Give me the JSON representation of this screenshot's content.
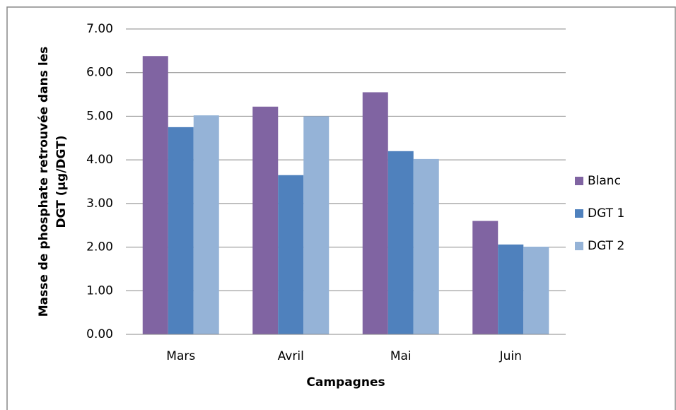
{
  "chart_data": {
    "type": "bar",
    "categories": [
      "Mars",
      "Avril",
      "Mai",
      "Juin"
    ],
    "series": [
      {
        "name": "Blanc",
        "color": "#8064a2",
        "values": [
          6.38,
          5.22,
          5.55,
          2.6
        ]
      },
      {
        "name": "DGT 1",
        "color": "#4f81bd",
        "values": [
          4.75,
          3.65,
          4.2,
          2.06
        ]
      },
      {
        "name": "DGT 2",
        "color": "#95b3d7",
        "values": [
          5.02,
          5.0,
          4.02,
          2.01
        ]
      }
    ],
    "xlabel": "Campagnes",
    "ylabel": [
      "Masse de phosphate retrouvée dans les",
      "DGT (µg/DGT)"
    ],
    "ylim": [
      0,
      7
    ],
    "yticks": [
      {
        "value": 0,
        "label": "0.00"
      },
      {
        "value": 1,
        "label": "1.00"
      },
      {
        "value": 2,
        "label": "2.00"
      },
      {
        "value": 3,
        "label": "3.00"
      },
      {
        "value": 4,
        "label": "4.00"
      },
      {
        "value": 5,
        "label": "5.00"
      },
      {
        "value": 6,
        "label": "6.00"
      },
      {
        "value": 7,
        "label": "7.00"
      }
    ],
    "grid": true,
    "legend": "right"
  }
}
